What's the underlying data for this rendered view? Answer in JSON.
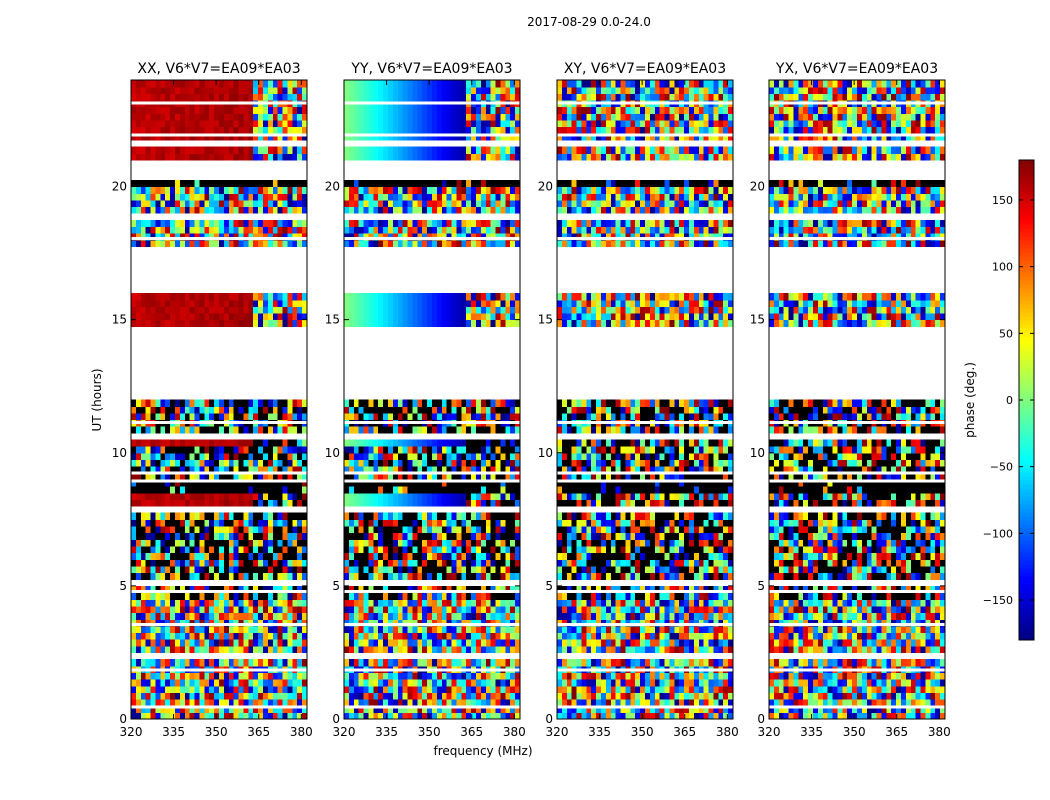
{
  "chart_data": {
    "type": "heatmap",
    "suptitle": "2017-08-29 0.0-24.0",
    "xlabel": "frequency (MHz)",
    "ylabel": "UT (hours)",
    "xlim": [
      320,
      382
    ],
    "ylim": [
      0,
      24
    ],
    "xticks": [
      320,
      335,
      350,
      365,
      380
    ],
    "yticks": [
      0,
      5,
      10,
      15,
      20
    ],
    "panels": [
      {
        "title": "XX, V6*V7=EA09*EA03",
        "pol": "XX"
      },
      {
        "title": "YY, V6*V7=EA09*EA03",
        "pol": "YY"
      },
      {
        "title": "XY, V6*V7=EA09*EA03",
        "pol": "XY"
      },
      {
        "title": "YX, V6*V7=EA09*EA03",
        "pol": "YX"
      }
    ],
    "colorbar": {
      "label": "phase (deg.)",
      "range": [
        -180,
        180
      ],
      "ticks": [
        150,
        100,
        50,
        0,
        -50,
        -100,
        -150
      ],
      "ticklabels": [
        "150",
        "100",
        "50",
        "0",
        "−50",
        "−100",
        "−150"
      ],
      "colormap": "jet"
    },
    "blank_ranges_hours": [
      [
        11.9,
        14.7
      ],
      [
        16.0,
        17.7
      ],
      [
        20.3,
        21.1
      ]
    ],
    "black_bands_hours": [
      [
        20.05,
        20.3
      ],
      [
        8.6,
        8.95
      ]
    ]
  }
}
